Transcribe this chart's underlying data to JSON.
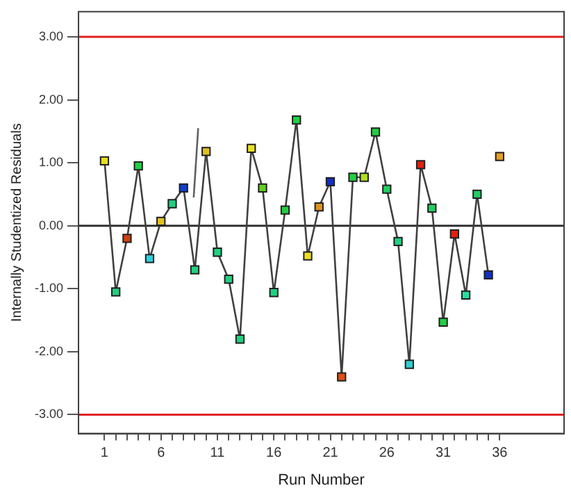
{
  "chart_data": {
    "type": "line",
    "xlabel": "Run Number",
    "ylabel": "Internally Studentized Residuals",
    "xlim": [
      -1.3,
      41.7
    ],
    "ylim": [
      -3.3,
      3.4
    ],
    "xticks": [
      1,
      {
        "value": 2,
        "label": null
      },
      {
        "value": 3,
        "label": null
      },
      {
        "value": 4,
        "label": null
      },
      {
        "value": 5,
        "label": null
      },
      6,
      {
        "value": 7,
        "label": null
      },
      {
        "value": 8,
        "label": null
      },
      {
        "value": 9,
        "label": null
      },
      {
        "value": 10,
        "label": null
      },
      11,
      {
        "value": 12,
        "label": null
      },
      {
        "value": 13,
        "label": null
      },
      {
        "value": 14,
        "label": null
      },
      {
        "value": 15,
        "label": null
      },
      16,
      {
        "value": 17,
        "label": null
      },
      {
        "value": 18,
        "label": null
      },
      {
        "value": 19,
        "label": null
      },
      {
        "value": 20,
        "label": null
      },
      21,
      {
        "value": 22,
        "label": null
      },
      {
        "value": 23,
        "label": null
      },
      {
        "value": 24,
        "label": null
      },
      {
        "value": 25,
        "label": null
      },
      26,
      {
        "value": 27,
        "label": null
      },
      {
        "value": 28,
        "label": null
      },
      {
        "value": 29,
        "label": null
      },
      {
        "value": 30,
        "label": null
      },
      31,
      {
        "value": 32,
        "label": null
      },
      {
        "value": 33,
        "label": null
      },
      {
        "value": 34,
        "label": null
      },
      {
        "value": 35,
        "label": null
      },
      36
    ],
    "yticks": [
      {
        "value": -3,
        "label": "-3.00"
      },
      {
        "value": -2,
        "label": "-2.00"
      },
      {
        "value": -1,
        "label": "-1.00"
      },
      {
        "value": 0,
        "label": "0.00"
      },
      {
        "value": 1,
        "label": "1.00"
      },
      {
        "value": 2,
        "label": "2.00"
      },
      {
        "value": 3,
        "label": "3.00"
      }
    ],
    "grid": false,
    "legend": false,
    "marker": "square",
    "line_style": "solid",
    "ref_lines": [
      {
        "axis": "y",
        "value": 3,
        "color": "#e02020"
      },
      {
        "axis": "y",
        "value": -3,
        "color": "#e02020"
      },
      {
        "axis": "y",
        "value": 0,
        "color": "#303030"
      }
    ],
    "series": [
      {
        "type": "line",
        "color": "#404040",
        "x": [
          1,
          2,
          3,
          4,
          5,
          6,
          7,
          8,
          9,
          10,
          11,
          12,
          13,
          14,
          15,
          16,
          17,
          18,
          19,
          20,
          21,
          22,
          23,
          24,
          25,
          26,
          27,
          28,
          29,
          30,
          31,
          32,
          33,
          34,
          35
        ],
        "values": [
          1.03,
          -1.05,
          -0.2,
          0.95,
          -0.52,
          0.07,
          0.35,
          0.6,
          -0.7,
          1.18,
          -0.42,
          -0.85,
          -1.8,
          1.23,
          0.6,
          -1.06,
          0.25,
          1.68,
          -0.48,
          0.3,
          0.7,
          -2.4,
          0.77,
          0.77,
          1.49,
          0.58,
          -0.25,
          -2.2,
          0.97,
          0.28,
          -1.53,
          -0.13,
          -1.1,
          0.5,
          -0.78
        ],
        "colors": [
          "#e8e020",
          "#20d080",
          "#d04010",
          "#20d040",
          "#30d0e0",
          "#e0c020",
          "#20d080",
          "#1040d0",
          "#20d080",
          "#e0c020",
          "#20d080",
          "#20d080",
          "#20d080",
          "#e8e020",
          "#60d020",
          "#20d080",
          "#20d040",
          "#20d040",
          "#e8e020",
          "#e09020",
          "#1030c0",
          "#e05010",
          "#20d040",
          "#b0e020",
          "#20d040",
          "#20d060",
          "#20d080",
          "#30d0d0",
          "#e02010",
          "#20d060",
          "#20d040",
          "#e02010",
          "#20e0a0",
          "#20d060",
          "#1030c0"
        ]
      },
      {
        "type": "scatter",
        "color": "#e8a020",
        "x": [
          36
        ],
        "values": [
          1.1
        ]
      },
      {
        "type": "line",
        "color": "#606060",
        "marker": "none",
        "x": [
          8.9,
          9.3
        ],
        "values": [
          0.45,
          1.55
        ]
      }
    ]
  }
}
